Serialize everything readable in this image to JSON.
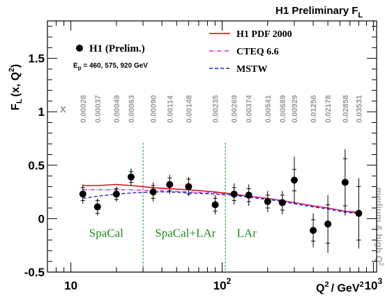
{
  "chart_data": {
    "type": "scatter",
    "title": "H1 Preliminary F",
    "title_sub": "L",
    "ylabel": "F",
    "ylabel_sub": "L",
    "ylabel_rest": "(x, Q",
    "ylabel_sup": "2",
    "ylabel_end": ")",
    "xlabel": "Q",
    "xlabel_sup1": "2",
    "xlabel_mid": "/ GeV",
    "xlabel_sup2": "2",
    "x_scale": "log",
    "xlim": [
      7,
      1050
    ],
    "ylim": [
      -0.5,
      1.85
    ],
    "x_ticks": [
      {
        "value": 10,
        "base": "10",
        "exp": ""
      },
      {
        "value": 100,
        "base": "10",
        "exp": "2"
      },
      {
        "value": 1000,
        "base": "10",
        "exp": "3"
      }
    ],
    "y_ticks": [
      {
        "value": -0.5,
        "label": "-0.5"
      },
      {
        "value": 0,
        "label": "0"
      },
      {
        "value": 0.5,
        "label": "0.5"
      },
      {
        "value": 1,
        "label": "1"
      },
      {
        "value": 1.5,
        "label": "1.5"
      }
    ],
    "x_row_label": "x",
    "x_row": [
      {
        "q2": 12,
        "label": "0.00028"
      },
      {
        "q2": 15,
        "label": "0.00037"
      },
      {
        "q2": 20,
        "label": "0.00049"
      },
      {
        "q2": 25,
        "label": "0.00063"
      },
      {
        "q2": 35,
        "label": "0.00090"
      },
      {
        "q2": 45,
        "label": "0.00114"
      },
      {
        "q2": 60,
        "label": "0.00148"
      },
      {
        "q2": 90,
        "label": "0.00235"
      },
      {
        "q2": 120,
        "label": "0.00269"
      },
      {
        "q2": 150,
        "label": "0.00374"
      },
      {
        "q2": 200,
        "label": "0.00541"
      },
      {
        "q2": 250,
        "label": "0.00689"
      },
      {
        "q2": 300,
        "label": "0.00929"
      },
      {
        "q2": 400,
        "label": "0.01256"
      },
      {
        "q2": 500,
        "label": "0.02178"
      },
      {
        "q2": 650,
        "label": "0.02858"
      },
      {
        "q2": 800,
        "label": "0.03531"
      }
    ],
    "series": [
      {
        "name": "H1 (Prelim.)",
        "kind": "points",
        "color": "#000000",
        "points": [
          {
            "x": 12,
            "y": 0.23,
            "err_in": 0.06,
            "err_tot": 0.09
          },
          {
            "x": 15,
            "y": 0.11,
            "err_in": 0.06,
            "err_tot": 0.08
          },
          {
            "x": 20,
            "y": 0.23,
            "err_in": 0.05,
            "err_tot": 0.07
          },
          {
            "x": 25,
            "y": 0.39,
            "err_in": 0.05,
            "err_tot": 0.08
          },
          {
            "x": 35,
            "y": 0.25,
            "err_in": 0.06,
            "err_tot": 0.09
          },
          {
            "x": 45,
            "y": 0.32,
            "err_in": 0.06,
            "err_tot": 0.09
          },
          {
            "x": 60,
            "y": 0.3,
            "err_in": 0.07,
            "err_tot": 0.09
          },
          {
            "x": 90,
            "y": 0.13,
            "err_in": 0.06,
            "err_tot": 0.09
          },
          {
            "x": 120,
            "y": 0.23,
            "err_in": 0.06,
            "err_tot": 0.1
          },
          {
            "x": 150,
            "y": 0.22,
            "err_in": 0.06,
            "err_tot": 0.1
          },
          {
            "x": 200,
            "y": 0.16,
            "err_in": 0.06,
            "err_tot": 0.1
          },
          {
            "x": 250,
            "y": 0.15,
            "err_in": 0.07,
            "err_tot": 0.11
          },
          {
            "x": 300,
            "y": 0.36,
            "err_in": 0.1,
            "err_tot": 0.22
          },
          {
            "x": 400,
            "y": -0.11,
            "err_in": 0.1,
            "err_tot": 0.16
          },
          {
            "x": 500,
            "y": -0.05,
            "err_in": 0.18,
            "err_tot": 0.27
          },
          {
            "x": 650,
            "y": 0.34,
            "err_in": 0.22,
            "err_tot": 0.31
          },
          {
            "x": 800,
            "y": 0.05,
            "err_in": 0.25,
            "err_tot": 0.33
          }
        ]
      },
      {
        "name": "H1 PDF 2000",
        "kind": "line",
        "style": "solid",
        "color": "#cc0000",
        "x": [
          12,
          15,
          20,
          25,
          35,
          45,
          60,
          90,
          120,
          150,
          200,
          250,
          300,
          400,
          500,
          650,
          800
        ],
        "y": [
          0.31,
          0.31,
          0.32,
          0.31,
          0.29,
          0.28,
          0.27,
          0.25,
          0.23,
          0.21,
          0.19,
          0.17,
          0.15,
          0.12,
          0.1,
          0.07,
          0.06
        ]
      },
      {
        "name": "CTEQ 6.6",
        "kind": "line",
        "style": "dashdot",
        "color": "#cc33cc",
        "x": [
          12,
          15,
          20,
          25,
          35,
          45,
          60,
          90,
          120,
          150,
          200,
          250,
          300,
          400,
          500,
          650,
          800
        ],
        "y": [
          0.27,
          0.27,
          0.27,
          0.27,
          0.26,
          0.26,
          0.25,
          0.24,
          0.22,
          0.21,
          0.19,
          0.17,
          0.15,
          0.12,
          0.1,
          0.07,
          0.05
        ]
      },
      {
        "name": "MSTW",
        "kind": "line",
        "style": "dashed",
        "color": "#2222cc",
        "x": [
          12,
          15,
          20,
          25,
          35,
          45,
          60,
          90,
          120,
          150,
          200,
          250,
          300,
          400,
          500,
          650,
          800
        ],
        "y": [
          0.19,
          0.21,
          0.23,
          0.24,
          0.25,
          0.25,
          0.24,
          0.23,
          0.22,
          0.2,
          0.18,
          0.16,
          0.14,
          0.11,
          0.09,
          0.06,
          0.05
        ]
      }
    ],
    "legend": {
      "placement": "top",
      "data_label": "H1 (Prelim.)",
      "beam_label": "E",
      "beam_sub": "p",
      "beam_rest": " = 460, 575, 920 GeV"
    },
    "regions": [
      {
        "label": "SpaCal",
        "from": 7,
        "to": 30
      },
      {
        "label": "SpaCal+LAr",
        "from": 30,
        "to": 105
      },
      {
        "label": "LAr",
        "from": 105,
        "to": 1050
      }
    ],
    "boundaries": [
      30,
      105
    ],
    "side_label": "medium & high Q",
    "side_label_sup": "2",
    "colors": {
      "axis": "#000000",
      "x_row": "#999999",
      "regions": "#228822",
      "side_label": "#aaaaaa"
    }
  }
}
